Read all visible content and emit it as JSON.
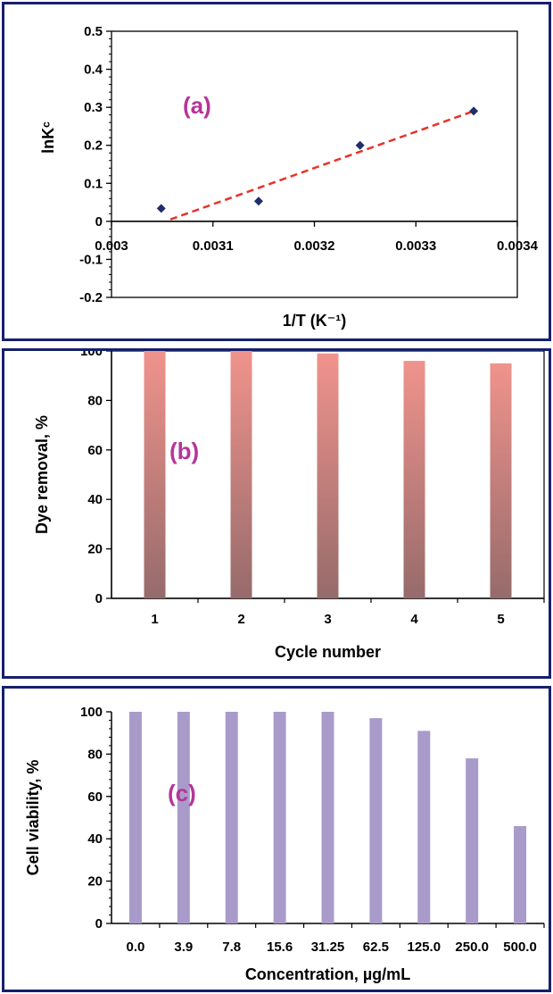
{
  "chart_data": [
    {
      "type": "scatter",
      "panel_label": "(a)",
      "xlabel": "1/T (K⁻¹)",
      "ylabel": "lnKᶜ",
      "xlim": [
        0.003,
        0.0034
      ],
      "ylim": [
        -0.2,
        0.5
      ],
      "x_ticks": [
        "0.003",
        "0.0031",
        "0.0032",
        "0.0033",
        "0.0034"
      ],
      "y_ticks": [
        "-0.2",
        "-0.1",
        "0",
        "0.1",
        "0.2",
        "0.3",
        "0.4",
        "0.5"
      ],
      "points": [
        {
          "x": 0.003049,
          "y": 0.034
        },
        {
          "x": 0.003145,
          "y": 0.053
        },
        {
          "x": 0.003245,
          "y": 0.2
        },
        {
          "x": 0.003357,
          "y": 0.29
        }
      ],
      "trendline": {
        "x": [
          0.003058,
          0.003357
        ],
        "y": [
          0.005,
          0.29
        ],
        "style": "dashed",
        "color": "#e8322a"
      },
      "grid": false
    },
    {
      "type": "bar",
      "panel_label": "(b)",
      "categories": [
        "1",
        "2",
        "3",
        "4",
        "5"
      ],
      "values": [
        100,
        100,
        99,
        96,
        95
      ],
      "xlabel": "Cycle number",
      "ylabel": "Dye removal, %",
      "ylim": [
        0,
        100
      ],
      "y_ticks": [
        "0",
        "20",
        "40",
        "60",
        "80",
        "100"
      ],
      "grid": false
    },
    {
      "type": "bar",
      "panel_label": "(c)",
      "categories": [
        "0.0",
        "3.9",
        "7.8",
        "15.6",
        "31.25",
        "62.5",
        "125.0",
        "250.0",
        "500.0"
      ],
      "values": [
        100,
        100,
        100,
        100,
        100,
        97,
        91,
        78,
        46
      ],
      "xlabel": "Concentration, µg/mL",
      "ylabel": "Cell viability, %",
      "ylim": [
        0,
        100
      ],
      "y_ticks": [
        "0",
        "20",
        "40",
        "60",
        "80",
        "100"
      ],
      "grid": false
    }
  ],
  "colors": {
    "frame": "#16206e",
    "marker": "#1f2d6b",
    "trendline": "#e8322a",
    "label": "#b5359a",
    "bar_b_top": "#f0938c",
    "bar_b_bottom": "#966b6b",
    "bar_c": "#a99bc9"
  }
}
